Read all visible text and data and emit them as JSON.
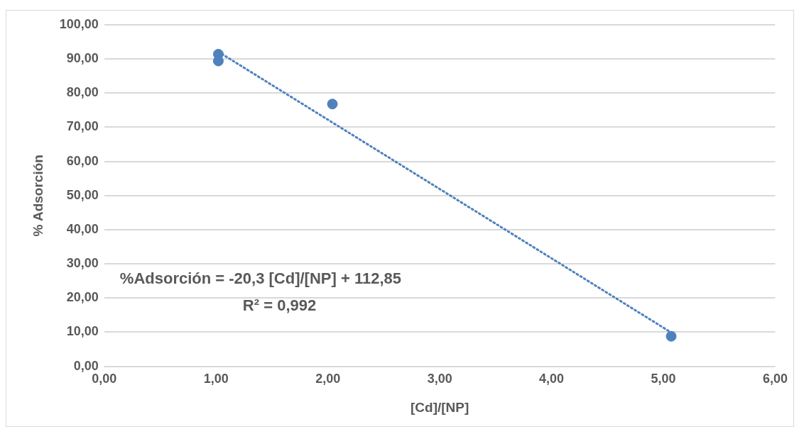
{
  "chart_data": {
    "type": "scatter",
    "xlabel": "[Cd]/[NP]",
    "ylabel": "% Adsorción",
    "series": [
      {
        "type": "scatter",
        "color": "#4f81bd",
        "x": [
          1.02,
          1.02,
          2.04,
          5.07
        ],
        "values": [
          91.4,
          89.4,
          76.8,
          8.8
        ]
      },
      {
        "type": "line",
        "color": "#4f81bd",
        "line_style": "dotted",
        "marker": "none",
        "x": [
          1.02,
          5.07
        ],
        "values": [
          92.1,
          9.9
        ]
      }
    ],
    "xlim": [
      0,
      6
    ],
    "xticks": [
      {
        "value": 0,
        "label": "0,00"
      },
      {
        "value": 1,
        "label": "1,00"
      },
      {
        "value": 2,
        "label": "2,00"
      },
      {
        "value": 3,
        "label": "3,00"
      },
      {
        "value": 4,
        "label": "4,00"
      },
      {
        "value": 5,
        "label": "5,00"
      },
      {
        "value": 6,
        "label": "6,00"
      }
    ],
    "ylim": [
      0,
      100
    ],
    "yticks": [
      {
        "value": 0,
        "label": "0,00"
      },
      {
        "value": 10,
        "label": "10,00"
      },
      {
        "value": 20,
        "label": "20,00"
      },
      {
        "value": 30,
        "label": "30,00"
      },
      {
        "value": 40,
        "label": "40,00"
      },
      {
        "value": 50,
        "label": "50,00"
      },
      {
        "value": 60,
        "label": "60,00"
      },
      {
        "value": 70,
        "label": "70,00"
      },
      {
        "value": 80,
        "label": "80,00"
      },
      {
        "value": 90,
        "label": "90,00"
      },
      {
        "value": 100,
        "label": "100,00"
      }
    ],
    "grid": "y",
    "marker": "circle",
    "legend": false,
    "annotations": [
      "%Adsorción = -20,3 [Cd]/[NP] + 112,85",
      "R² = 0,992"
    ]
  }
}
